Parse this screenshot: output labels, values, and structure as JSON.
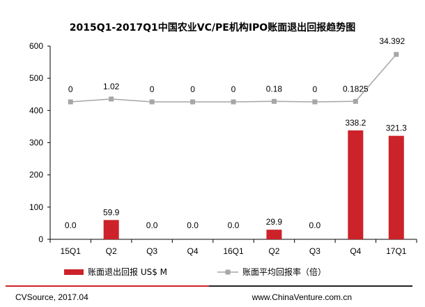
{
  "chart_data": {
    "type": "bar",
    "title": "2015Q1-2017Q1中国农业VC/PE机构IPO账面退出回报趋势图",
    "categories": [
      "15Q1",
      "Q2",
      "Q3",
      "Q4",
      "16Q1",
      "Q2",
      "Q3",
      "Q4",
      "17Q1"
    ],
    "ylim": [
      0,
      600
    ],
    "yticks": [
      0,
      100,
      200,
      300,
      400,
      500,
      600
    ],
    "grid": false,
    "legend_position": "bottom",
    "series": [
      {
        "name": "账面退出回报 US$ M",
        "kind": "bar",
        "color": "#cc2229",
        "values": [
          0,
          59.9,
          0,
          0,
          0,
          29.9,
          0,
          338.2,
          321.3
        ],
        "labels": [
          "0.0",
          "59.9",
          "0.0",
          "0.0",
          "0.0",
          "29.9",
          "0.0",
          "338.2",
          "321.3"
        ]
      },
      {
        "name": "账面平均回报率（倍）",
        "kind": "line",
        "color": "#a6a6a6",
        "values": [
          0,
          1.02,
          0,
          0,
          0,
          0.18,
          0,
          0.1825,
          34.392
        ],
        "labels": [
          "0",
          "1.02",
          "0",
          "0",
          "0",
          "0.18",
          "0",
          "0.1825",
          "34.392"
        ]
      }
    ]
  },
  "footer": {
    "source": "CVSource, 2017.04",
    "website": "www.ChinaVenture.com.cn",
    "accent_color": "#cc2229"
  }
}
